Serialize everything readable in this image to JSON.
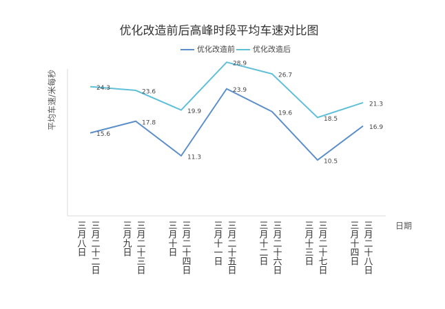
{
  "chart_data": {
    "type": "line",
    "title": "优化改造前后高峰时段平均车速对比图",
    "y_label": "平均车速/米每秒",
    "x_label": "日期",
    "categories": [
      [
        "三月八日",
        "三月二十二日"
      ],
      [
        "三月九日",
        "三月二十三日"
      ],
      [
        "三月十日",
        "三月二十四日"
      ],
      [
        "三月十一日",
        "三月二十五日"
      ],
      [
        "三月十二日",
        "三月二十六日"
      ],
      [
        "三月十三日",
        "三月二十七日"
      ],
      [
        "三月十四日",
        "三月二十八日"
      ]
    ],
    "series": [
      {
        "name": "优化改造前",
        "color": "#5b8ec8",
        "values": [
          15.6,
          17.8,
          11.3,
          23.9,
          19.6,
          10.5,
          16.9
        ]
      },
      {
        "name": "优化改造后",
        "color": "#5fbfd9",
        "values": [
          24.3,
          23.6,
          19.9,
          28.9,
          26.7,
          18.5,
          21.3
        ]
      }
    ],
    "ylim": [
      0,
      30
    ],
    "legend": "top"
  }
}
